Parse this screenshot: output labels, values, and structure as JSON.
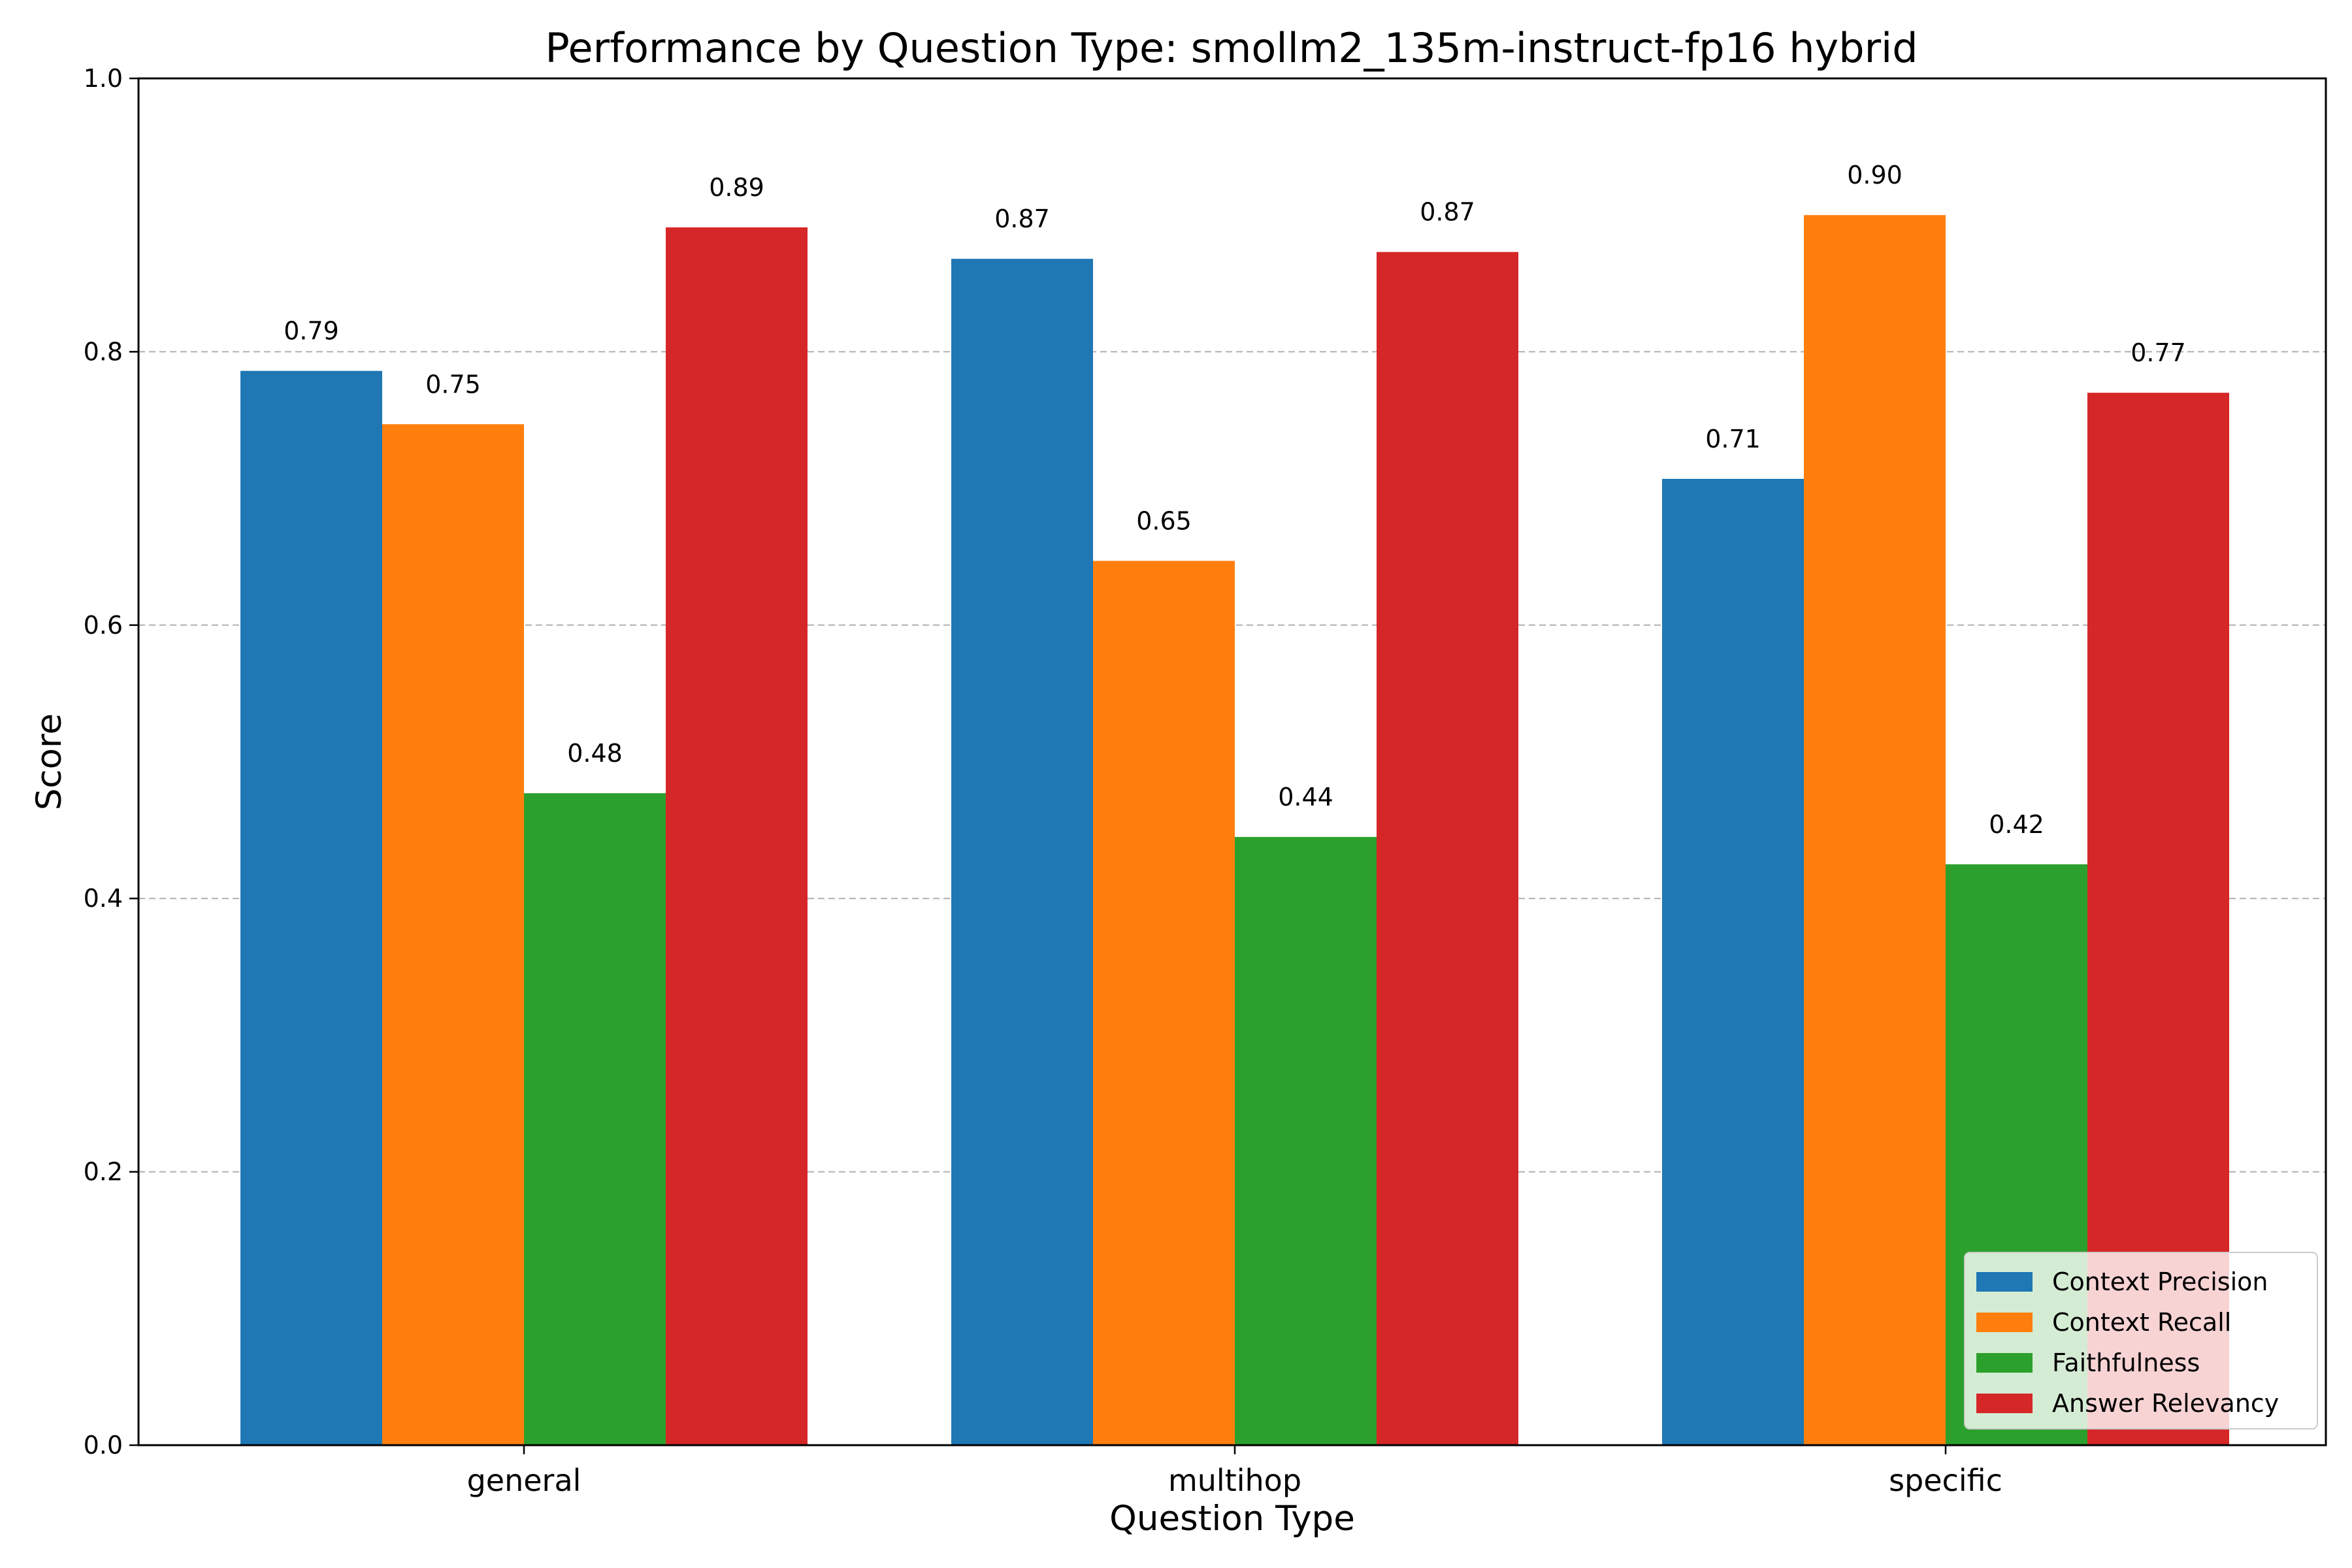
{
  "chart_data": {
    "type": "bar",
    "title": "Performance by Question Type: smollm2_135m-instruct-fp16 hybrid",
    "xlabel": "Question Type",
    "ylabel": "Score",
    "categories": [
      "general",
      "multihop",
      "specific"
    ],
    "ylim": [
      0,
      1.0
    ],
    "yticks": [
      "0.0",
      "0.2",
      "0.4",
      "0.6",
      "0.8",
      "1.0"
    ],
    "grid": "y-dashed",
    "legend_position": "bottom-right",
    "series": [
      {
        "name": "Context Precision",
        "color": "#1f77b4",
        "values": [
          0.786,
          0.868,
          0.707
        ],
        "labels": [
          "0.79",
          "0.87",
          "0.71"
        ]
      },
      {
        "name": "Context Recall",
        "color": "#ff7f0e",
        "values": [
          0.747,
          0.647,
          0.9
        ],
        "labels": [
          "0.75",
          "0.65",
          "0.90"
        ]
      },
      {
        "name": "Faithfulness",
        "color": "#2ca02c",
        "values": [
          0.477,
          0.445,
          0.425
        ],
        "labels": [
          "0.48",
          "0.44",
          "0.42"
        ]
      },
      {
        "name": "Answer Relevancy",
        "color": "#d62728",
        "values": [
          0.891,
          0.873,
          0.77
        ],
        "labels": [
          "0.89",
          "0.87",
          "0.77"
        ]
      }
    ]
  }
}
